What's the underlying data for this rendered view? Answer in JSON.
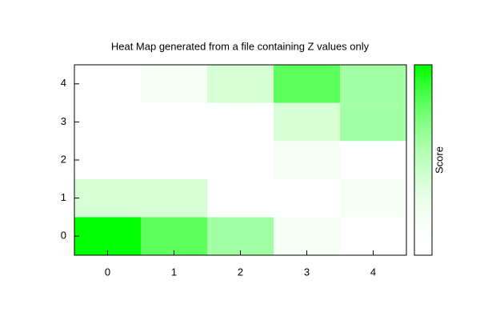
{
  "chart_data": {
    "type": "heatmap",
    "title": "Heat Map generated from a file containing Z values only",
    "z": [
      [
        5,
        4,
        3,
        1,
        0
      ],
      [
        2,
        2,
        0,
        0,
        1
      ],
      [
        0,
        0,
        0,
        1,
        0
      ],
      [
        0,
        0,
        0,
        2,
        3
      ],
      [
        0,
        1,
        2,
        4,
        3
      ]
    ],
    "xlim": [
      -0.5,
      4.5
    ],
    "ylim": [
      -0.5,
      4.5
    ],
    "xticks": [
      0,
      1,
      2,
      3,
      4
    ],
    "yticks": [
      0,
      1,
      2,
      3,
      4
    ],
    "cblim": [
      0,
      5
    ],
    "palette": [
      "#ffffff",
      "#00ff00"
    ],
    "colorbar_label": "Score"
  }
}
